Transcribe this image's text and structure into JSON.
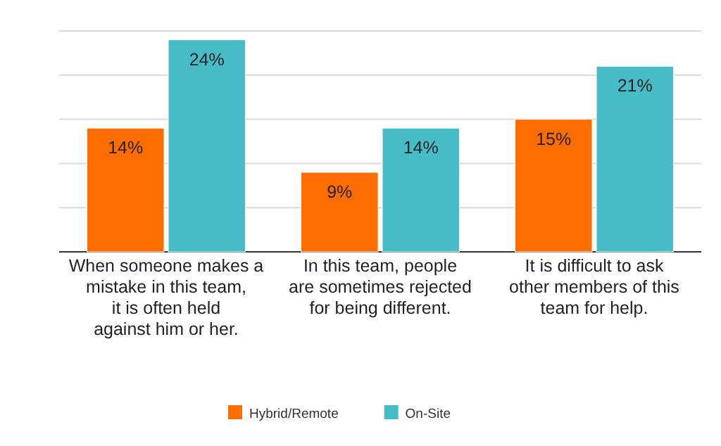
{
  "chart_data": {
    "type": "bar",
    "categories": [
      "When someone makes a mistake in this team, it is often held against him or her.",
      "In this team, people are sometimes rejected for being different.",
      "It is difficult to ask other members of this team for help."
    ],
    "series": [
      {
        "name": "Hybrid/Remote",
        "color": "#ff6d01",
        "values": [
          14,
          9,
          15
        ],
        "value_labels": [
          "14%",
          "9%",
          "15%"
        ]
      },
      {
        "name": "On-Site",
        "color": "#46bdc6",
        "values": [
          24,
          14,
          21
        ],
        "value_labels": [
          "24%",
          "14%",
          "21%"
        ]
      }
    ],
    "ylim": [
      0,
      25
    ],
    "yticks": [
      {
        "value": 0,
        "label": null
      },
      {
        "value": 5,
        "label": null
      },
      {
        "value": 10,
        "label": null
      },
      {
        "value": 15,
        "label": null
      },
      {
        "value": 20,
        "label": null
      },
      {
        "value": 25,
        "label": null
      }
    ],
    "tick_labels": "x",
    "grid": "y",
    "legend": "bottom"
  }
}
